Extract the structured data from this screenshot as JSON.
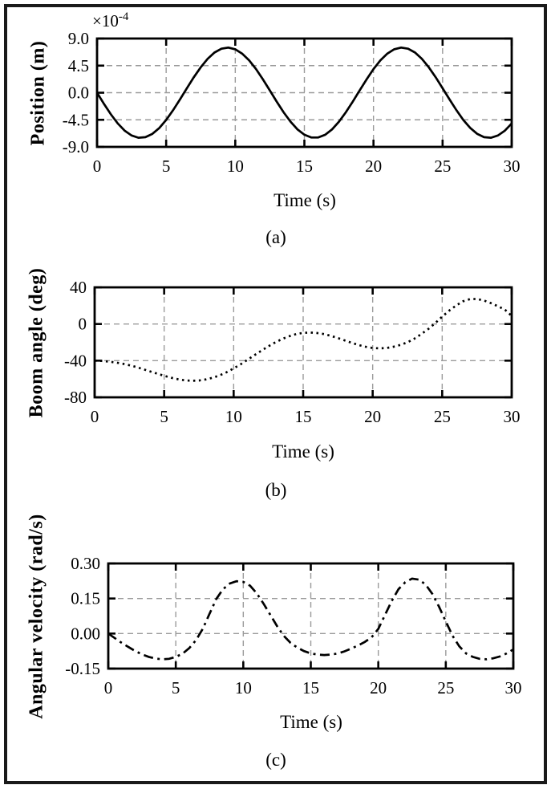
{
  "figure": {
    "background": "#ffffff",
    "border_color": "#1a1a1a"
  },
  "chart_data": [
    {
      "id": "a",
      "type": "line",
      "caption": "(a)",
      "xlabel": "Time (s)",
      "ylabel": "Position (m)",
      "y_offset_base": "×10",
      "y_offset_exp": "-4",
      "line_style": "solid",
      "line_color": "#000000",
      "grid_color": "#9a9a9a",
      "grid": true,
      "xlim": [
        0,
        30
      ],
      "ylim": [
        -9,
        9
      ],
      "xticks": [
        0,
        5,
        10,
        15,
        20,
        25,
        30
      ],
      "xtick_labels": [
        "0",
        "5",
        "10",
        "15",
        "20",
        "25",
        "30"
      ],
      "yticks": [
        9,
        4.5,
        0,
        -4.5,
        -9
      ],
      "ytick_labels": [
        "9.0",
        "4.5",
        "0.0",
        "-4.5",
        "-9.0"
      ],
      "grid_x": [
        5,
        10,
        15,
        20,
        25
      ],
      "grid_y": [
        4.5,
        0,
        -4.5
      ],
      "x_start": 0,
      "x_step": 0.5,
      "values": [
        0,
        -1.85,
        -3.59,
        -5.1,
        -6.3,
        -7.11,
        -7.48,
        -7.39,
        -6.84,
        -5.87,
        -4.52,
        -2.91,
        -1.12,
        0.75,
        2.56,
        4.22,
        5.62,
        6.68,
        7.31,
        7.5,
        7.22,
        6.5,
        5.38,
        3.93,
        2.21,
        0.38,
        -1.48,
        -3.25,
        -4.82,
        -6.09,
        -6.98,
        -7.44,
        -7.44,
        -6.99,
        -6.09,
        -4.83,
        -3.26,
        -1.49,
        0.37,
        2.21,
        3.93,
        5.38,
        6.49,
        7.22,
        7.5,
        7.31,
        6.68,
        5.62,
        4.22,
        2.57,
        0.75,
        -1.12,
        -2.91,
        -4.53,
        -5.86,
        -6.83,
        -7.39,
        -7.48,
        -7.11,
        -6.3,
        -5.1
      ]
    },
    {
      "id": "b",
      "type": "line",
      "caption": "(b)",
      "xlabel": "Time (s)",
      "ylabel": "Boom angle (deg)",
      "line_style": "dotted",
      "line_color": "#000000",
      "grid_color": "#9a9a9a",
      "grid": true,
      "xlim": [
        0,
        30
      ],
      "ylim": [
        -80,
        40
      ],
      "xticks": [
        0,
        5,
        10,
        15,
        20,
        25,
        30
      ],
      "xtick_labels": [
        "0",
        "5",
        "10",
        "15",
        "20",
        "25",
        "30"
      ],
      "yticks": [
        40,
        0,
        -40,
        -80
      ],
      "ytick_labels": [
        "40",
        "0",
        "-40",
        "-80"
      ],
      "grid_x": [
        5,
        10,
        15,
        20,
        25
      ],
      "grid_y": [
        0,
        -40
      ],
      "x_start": 0,
      "x_step": 0.5,
      "values": [
        -40,
        -40.3,
        -41,
        -42,
        -43.3,
        -45,
        -47,
        -49.3,
        -51.8,
        -54.2,
        -56.5,
        -58.6,
        -60.3,
        -61.5,
        -62,
        -61.7,
        -60.5,
        -58.6,
        -56,
        -52.6,
        -48.5,
        -44,
        -39,
        -34,
        -29,
        -24.3,
        -20,
        -16.3,
        -13.3,
        -11,
        -9.7,
        -9.3,
        -9.8,
        -11,
        -13,
        -15.4,
        -18,
        -20.6,
        -23,
        -24.9,
        -26.2,
        -26.6,
        -26.2,
        -24.8,
        -22.8,
        -20,
        -16,
        -11,
        -5.5,
        1,
        8,
        14.5,
        20.2,
        24.8,
        27.2,
        27.3,
        25.6,
        22.8,
        19.4,
        15.8,
        8.8
      ]
    },
    {
      "id": "c",
      "type": "line",
      "caption": "(c)",
      "xlabel": "Time (s)",
      "ylabel": "Angular velocity (rad/s)",
      "line_style": "dashdot",
      "line_color": "#000000",
      "grid_color": "#9a9a9a",
      "grid": true,
      "xlim": [
        0,
        30
      ],
      "ylim": [
        -0.15,
        0.3
      ],
      "xticks": [
        0,
        5,
        10,
        15,
        20,
        25,
        30
      ],
      "xtick_labels": [
        "0",
        "5",
        "10",
        "15",
        "20",
        "25",
        "30"
      ],
      "yticks": [
        0.3,
        0.15,
        0,
        -0.15
      ],
      "ytick_labels": [
        "0.30",
        "0.15",
        "0.00",
        "-0.15"
      ],
      "grid_x": [
        5,
        10,
        15,
        20,
        25
      ],
      "grid_y": [
        0.15,
        0
      ],
      "x_start": 0,
      "x_step": 0.5,
      "values": [
        0,
        -0.02,
        -0.04,
        -0.058,
        -0.075,
        -0.089,
        -0.1,
        -0.107,
        -0.11,
        -0.108,
        -0.1,
        -0.086,
        -0.062,
        -0.028,
        0.02,
        0.085,
        0.148,
        0.19,
        0.214,
        0.224,
        0.221,
        0.205,
        0.172,
        0.128,
        0.08,
        0.032,
        -0.01,
        -0.04,
        -0.06,
        -0.075,
        -0.085,
        -0.09,
        -0.092,
        -0.09,
        -0.085,
        -0.076,
        -0.064,
        -0.051,
        -0.036,
        -0.016,
        0.02,
        0.08,
        0.14,
        0.19,
        0.22,
        0.235,
        0.231,
        0.21,
        0.17,
        0.115,
        0.052,
        -0.01,
        -0.055,
        -0.085,
        -0.1,
        -0.108,
        -0.11,
        -0.106,
        -0.098,
        -0.085,
        -0.068
      ]
    }
  ]
}
